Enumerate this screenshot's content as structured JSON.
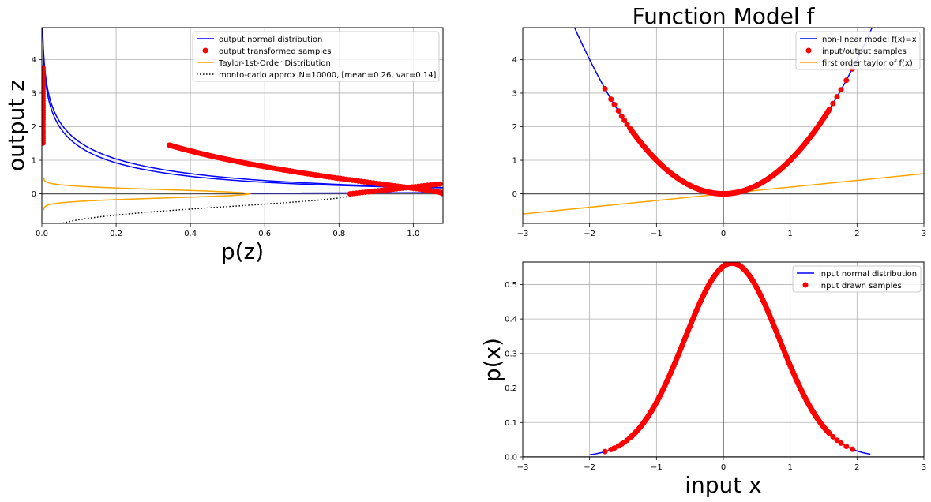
{
  "chart_data": [
    {
      "id": "output",
      "type": "line",
      "title": "",
      "xlabel": "p(z)",
      "ylabel": "output z",
      "xlim": [
        0,
        1.08
      ],
      "ylim": [
        -0.88,
        4.95
      ],
      "xticks": [
        "0.0",
        "0.2",
        "0.4",
        "0.6",
        "0.8",
        "1.0"
      ],
      "yticks": [
        "0",
        "1",
        "2",
        "3",
        "4"
      ],
      "grid": true,
      "legend_position": "top-right",
      "series": [
        {
          "name": "output normal distribution",
          "color": "#0000ff",
          "style": "solid"
        },
        {
          "name": "output transformed samples",
          "color": "#ff0000",
          "style": "markers"
        },
        {
          "name": "Taylor-1st-Order Distribution",
          "color": "#ffa500",
          "style": "solid"
        },
        {
          "name": "monto-carlo approx N=10000, [mean=0.26, var=0.14]",
          "color": "#000000",
          "style": "dotted"
        }
      ]
    },
    {
      "id": "model",
      "type": "line",
      "title": "Function Model f",
      "xlabel": "",
      "ylabel": "",
      "xlim": [
        -3,
        3
      ],
      "ylim": [
        -0.88,
        4.95
      ],
      "xticks": [
        "−3",
        "−2",
        "−1",
        "0",
        "1",
        "2",
        "3"
      ],
      "yticks": [
        "0",
        "1",
        "2",
        "3",
        "4"
      ],
      "grid": true,
      "legend_position": "top-right",
      "series": [
        {
          "name": "non-linear model f(x)=x",
          "color": "#0000ff",
          "style": "solid"
        },
        {
          "name": "input/output samples",
          "color": "#ff0000",
          "style": "markers"
        },
        {
          "name": "first order taylor of f(x)",
          "color": "#ffa500",
          "style": "solid"
        }
      ]
    },
    {
      "id": "input",
      "type": "line",
      "title": "",
      "xlabel": "input x",
      "ylabel": "p(x)",
      "xlim": [
        -3,
        3
      ],
      "ylim": [
        0,
        0.565
      ],
      "xticks": [
        "−3",
        "−2",
        "−1",
        "0",
        "1",
        "2",
        "3"
      ],
      "yticks": [
        "0.0",
        "0.1",
        "0.2",
        "0.3",
        "0.4",
        "0.5"
      ],
      "grid": true,
      "legend_position": "top-right",
      "series": [
        {
          "name": "input normal distribution",
          "color": "#0000ff",
          "style": "solid"
        },
        {
          "name": "input drawn samples",
          "color": "#ff0000",
          "style": "markers"
        }
      ]
    }
  ]
}
